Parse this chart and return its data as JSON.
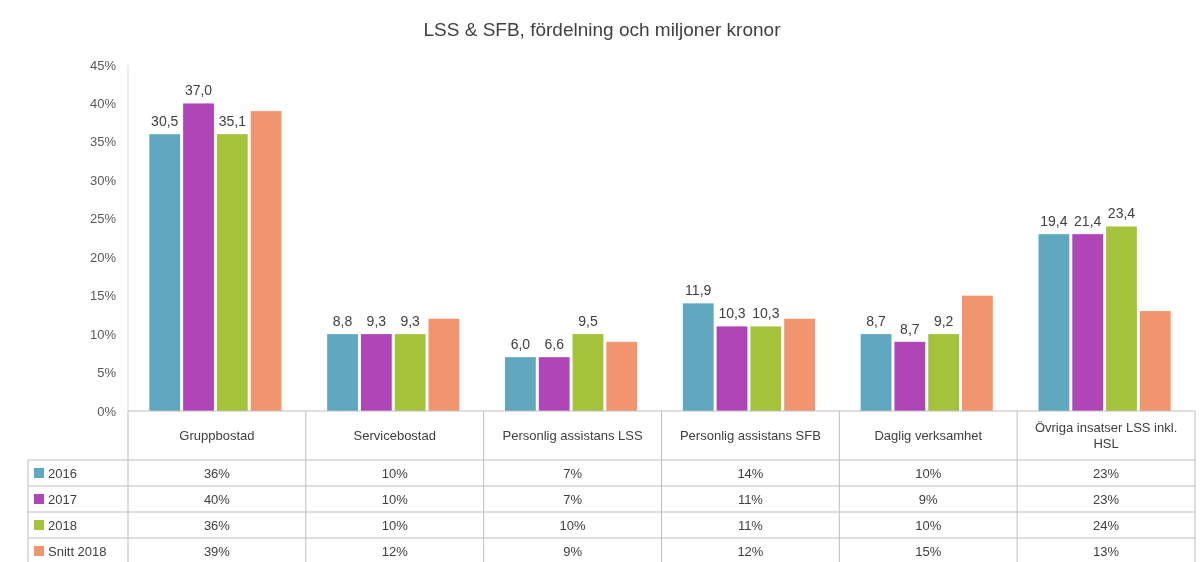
{
  "chart_data": {
    "type": "bar",
    "title": "LSS & SFB, fördelning och miljoner kronor",
    "categories": [
      "Gruppbostad",
      "Servicebostad",
      "Personlig assistans LSS",
      "Personlig assistans SFB",
      "Daglig verksamhet",
      "Övriga insatser LSS inkl. HSL"
    ],
    "series": [
      {
        "name": "2016",
        "color": "#5fa8c0",
        "values": [
          36,
          10,
          7,
          14,
          10,
          23
        ],
        "value_labels": [
          "36%",
          "10%",
          "7%",
          "14%",
          "10%",
          "23%"
        ]
      },
      {
        "name": "2017",
        "color": "#b045b8",
        "values": [
          40,
          10,
          7,
          11,
          9,
          23
        ],
        "value_labels": [
          "40%",
          "10%",
          "7%",
          "11%",
          "9%",
          "23%"
        ]
      },
      {
        "name": "2018",
        "color": "#a4c23a",
        "values": [
          36,
          10,
          10,
          11,
          10,
          24
        ],
        "value_labels": [
          "36%",
          "10%",
          "10%",
          "11%",
          "10%",
          "24%"
        ]
      },
      {
        "name": "Snitt 2018",
        "color": "#f0956e",
        "values": [
          39,
          12,
          9,
          12,
          15,
          13
        ],
        "value_labels": [
          "39%",
          "12%",
          "9%",
          "12%",
          "15%",
          "13%"
        ]
      }
    ],
    "annotations": [
      "30,5",
      "8,8",
      "6,0",
      "11,9",
      "8,7",
      "19,4",
      "37,0",
      "9,3",
      "6,6",
      "10,3",
      "8,7",
      "21,4",
      "35,1",
      "9,3",
      "9,5",
      "10,3",
      "9,2",
      "23,4"
    ],
    "ylim": [
      0,
      45
    ],
    "yticks": [
      {
        "value": 0,
        "label": "0%"
      },
      {
        "value": 5,
        "label": "5%"
      },
      {
        "value": 10,
        "label": "10%"
      },
      {
        "value": 15,
        "label": "15%"
      },
      {
        "value": 20,
        "label": "20%"
      },
      {
        "value": 25,
        "label": "25%"
      },
      {
        "value": 30,
        "label": "30%"
      },
      {
        "value": 35,
        "label": "35%"
      },
      {
        "value": 40,
        "label": "40%"
      },
      {
        "value": 45,
        "label": "45%"
      }
    ],
    "legend": "bottom"
  }
}
